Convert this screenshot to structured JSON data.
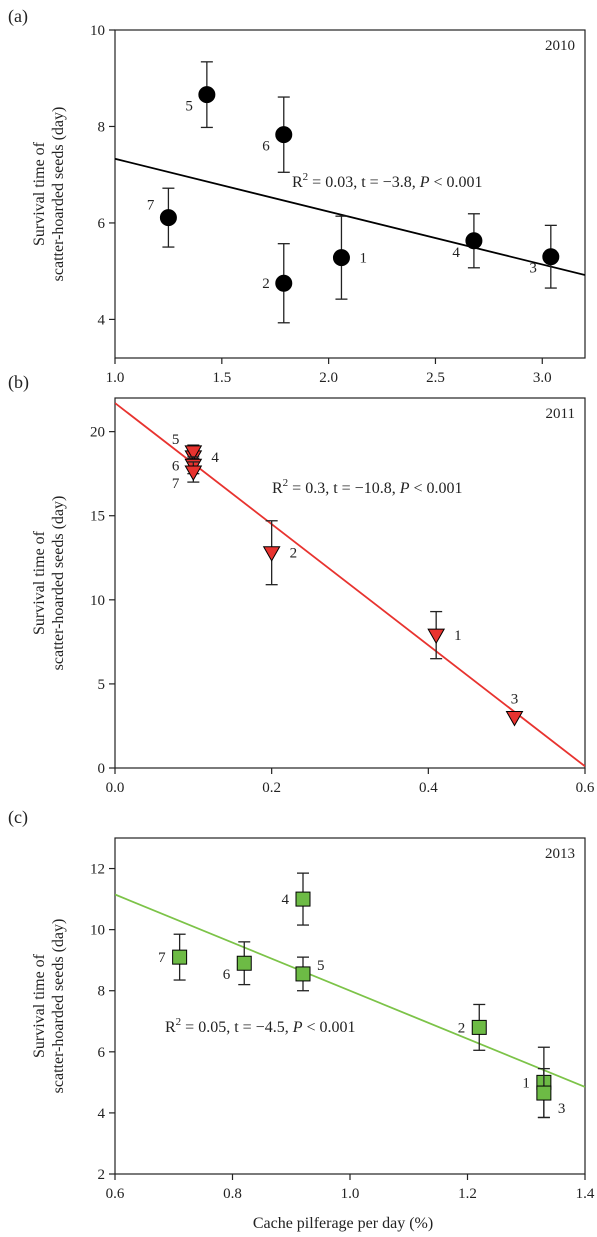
{
  "figure": {
    "xlabel": "Cache pilferage per day (%)",
    "ylabel_line1": "Survival time of",
    "ylabel_line2": "scatter-hoarded seeds (day)"
  },
  "chart_data": [
    {
      "type": "scatter",
      "panel": "(a)",
      "year": "2010",
      "xlim": [
        1.0,
        3.2
      ],
      "ylim": [
        3.2,
        10
      ],
      "xticks": [
        1.0,
        1.5,
        2.0,
        2.5,
        3.0
      ],
      "xtick_labels": [
        "1.0",
        "1.5",
        "2.0",
        "2.5",
        "3.0"
      ],
      "yticks": [
        4,
        6,
        8,
        10
      ],
      "ytick_labels": [
        "4",
        "6",
        "8",
        "10"
      ],
      "marker": "circle",
      "marker_color": "#000000",
      "line_color": "#000000",
      "stat_parts": [
        "R",
        "2",
        " = 0.03, t = −3.8, ",
        "P",
        " < 0.001"
      ],
      "points": [
        {
          "label": "1",
          "x": 2.06,
          "y": 5.28,
          "err": 0.86,
          "lpos": "right"
        },
        {
          "label": "2",
          "x": 1.79,
          "y": 4.75,
          "err": 0.82,
          "lpos": "left"
        },
        {
          "label": "3",
          "x": 3.04,
          "y": 5.3,
          "err": 0.65,
          "lpos": "left-low"
        },
        {
          "label": "4",
          "x": 2.68,
          "y": 5.63,
          "err": 0.56,
          "lpos": "left-low"
        },
        {
          "label": "5",
          "x": 1.43,
          "y": 8.66,
          "err": 0.68,
          "lpos": "left-low"
        },
        {
          "label": "6",
          "x": 1.79,
          "y": 7.83,
          "err": 0.78,
          "lpos": "left-low"
        },
        {
          "label": "7",
          "x": 1.25,
          "y": 6.11,
          "err": 0.61,
          "lpos": "left-high"
        }
      ],
      "fit": {
        "x": [
          1.0,
          3.2
        ],
        "y": [
          7.33,
          4.92
        ]
      }
    },
    {
      "type": "scatter",
      "panel": "(b)",
      "year": "2011",
      "xlim": [
        0.0,
        0.6
      ],
      "ylim": [
        0,
        22
      ],
      "xticks": [
        0.0,
        0.2,
        0.4,
        0.6
      ],
      "xtick_labels": [
        "0.0",
        "0.2",
        "0.4",
        "0.6"
      ],
      "yticks": [
        0,
        5,
        10,
        15,
        20
      ],
      "ytick_labels": [
        "0",
        "5",
        "10",
        "15",
        "20"
      ],
      "marker": "triangle-down",
      "marker_color": "#e8332f",
      "line_color": "#e8332f",
      "stat_parts": [
        "R",
        "2",
        " = 0.3, t = −10.8, ",
        "P",
        " < 0.001"
      ],
      "points": [
        {
          "label": "1",
          "x": 0.41,
          "y": 7.9,
          "err": 1.4,
          "lpos": "right"
        },
        {
          "label": "2",
          "x": 0.2,
          "y": 12.8,
          "err": 1.9,
          "lpos": "right"
        },
        {
          "label": "3",
          "x": 0.51,
          "y": 3.0,
          "err": 0.0,
          "lpos": "above"
        },
        {
          "label": "4",
          "x": 0.1,
          "y": 18.5,
          "err": 0.6,
          "lpos": "right"
        },
        {
          "label": "5",
          "x": 0.1,
          "y": 18.8,
          "err": 0.4,
          "lpos": "left-high"
        },
        {
          "label": "6",
          "x": 0.1,
          "y": 18.0,
          "err": 0.5,
          "lpos": "left"
        },
        {
          "label": "7",
          "x": 0.1,
          "y": 17.6,
          "err": 0.6,
          "lpos": "left-low"
        }
      ],
      "fit": {
        "x": [
          0.0,
          0.6
        ],
        "y": [
          21.7,
          0.1
        ]
      }
    },
    {
      "type": "scatter",
      "panel": "(c)",
      "year": "2013",
      "xlim": [
        0.6,
        1.4
      ],
      "ylim": [
        2,
        13
      ],
      "xticks": [
        0.6,
        0.8,
        1.0,
        1.2,
        1.4
      ],
      "xtick_labels": [
        "0.6",
        "0.8",
        "1.0",
        "1.2",
        "1.4"
      ],
      "yticks": [
        2,
        4,
        6,
        8,
        10,
        12
      ],
      "ytick_labels": [
        "2",
        "4",
        "6",
        "8",
        "10",
        "12"
      ],
      "marker": "square",
      "marker_color": "#6dbb45",
      "line_color": "#7cc348",
      "stat_parts": [
        "R",
        "2",
        " = 0.05, t = −4.5, ",
        "P",
        " < 0.001"
      ],
      "points": [
        {
          "label": "1",
          "x": 1.33,
          "y": 5.0,
          "err": 1.15,
          "lpos": "left"
        },
        {
          "label": "2",
          "x": 1.22,
          "y": 6.8,
          "err": 0.75,
          "lpos": "left"
        },
        {
          "label": "3",
          "x": 1.33,
          "y": 4.65,
          "err": 0.8,
          "lpos": "right-low"
        },
        {
          "label": "4",
          "x": 0.92,
          "y": 11.0,
          "err": 0.85,
          "lpos": "left"
        },
        {
          "label": "5",
          "x": 0.92,
          "y": 8.55,
          "err": 0.55,
          "lpos": "right-high"
        },
        {
          "label": "6",
          "x": 0.82,
          "y": 8.9,
          "err": 0.7,
          "lpos": "left-low"
        },
        {
          "label": "7",
          "x": 0.71,
          "y": 9.1,
          "err": 0.75,
          "lpos": "left"
        }
      ],
      "fit": {
        "x": [
          0.6,
          1.4
        ],
        "y": [
          11.15,
          4.85
        ]
      }
    }
  ]
}
